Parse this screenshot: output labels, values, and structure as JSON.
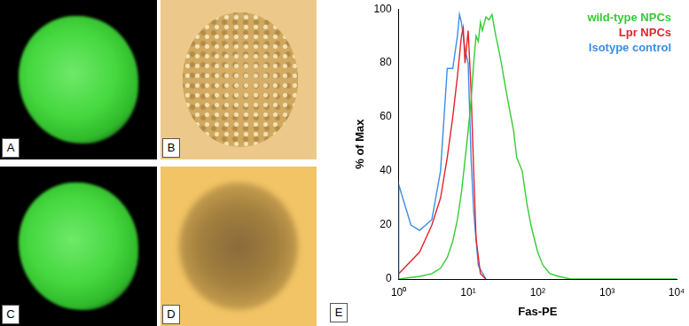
{
  "panels": [
    {
      "label": "A"
    },
    {
      "label": "B"
    },
    {
      "label": "C"
    },
    {
      "label": "D"
    }
  ],
  "chart_data": {
    "type": "line",
    "panel_label": "E",
    "x_label": "Fas-PE",
    "y_label": "% of Max",
    "log": "x",
    "grid": false,
    "legend": "top-right",
    "xlim": [
      1,
      10000
    ],
    "xticks": [
      {
        "value": 1,
        "label": "10⁰"
      },
      {
        "value": 10,
        "label": "10¹"
      },
      {
        "value": 100,
        "label": "10²"
      },
      {
        "value": 1000,
        "label": "10³"
      },
      {
        "value": 10000,
        "label": "10⁴"
      }
    ],
    "ylim": [
      0,
      100
    ],
    "yticks": [
      0,
      20,
      40,
      60,
      80,
      100
    ],
    "series": [
      {
        "name": "wild-type NPCs",
        "color": "#33cc33",
        "x": [
          1,
          2,
          3,
          4,
          5,
          6,
          7,
          8,
          9,
          10,
          11,
          12,
          13,
          14,
          15,
          16,
          18,
          20,
          22,
          25,
          28,
          30,
          35,
          40,
          45,
          50,
          60,
          70,
          80,
          100,
          120,
          150,
          200,
          300,
          1000,
          10000
        ],
        "values": [
          0,
          1,
          2,
          4,
          8,
          14,
          22,
          32,
          44,
          55,
          66,
          80,
          90,
          88,
          95,
          92,
          97,
          96,
          98,
          90,
          84,
          80,
          70,
          62,
          55,
          45,
          40,
          28,
          20,
          10,
          5,
          2,
          1,
          0,
          0,
          0
        ]
      },
      {
        "name": "Lpr NPCs",
        "color": "#e8222a",
        "x": [
          1,
          2,
          3,
          4,
          5,
          6,
          7,
          8,
          8.5,
          9,
          10,
          11,
          12,
          13,
          15,
          18
        ],
        "values": [
          2,
          10,
          20,
          30,
          45,
          60,
          75,
          90,
          93,
          80,
          92,
          70,
          40,
          15,
          2,
          0
        ]
      },
      {
        "name": "Isotype control",
        "color": "#3a8ee6",
        "x": [
          1,
          1,
          1.5,
          2,
          3,
          4,
          5,
          6,
          7,
          7.5,
          8,
          9,
          10,
          11,
          12,
          14,
          18
        ],
        "values": [
          0,
          35,
          20,
          18,
          22,
          40,
          78,
          78,
          90,
          98,
          95,
          85,
          80,
          45,
          25,
          5,
          0
        ]
      }
    ]
  }
}
